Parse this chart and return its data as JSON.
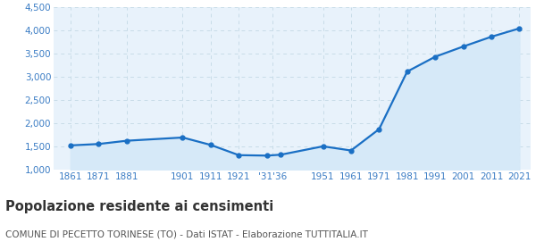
{
  "years": [
    1861,
    1871,
    1881,
    1901,
    1911,
    1921,
    1931,
    1936,
    1951,
    1961,
    1971,
    1981,
    1991,
    2001,
    2011,
    2021
  ],
  "population": [
    1530,
    1560,
    1630,
    1700,
    1540,
    1320,
    1310,
    1330,
    1510,
    1420,
    1880,
    3120,
    3440,
    3660,
    3870,
    4050
  ],
  "x_tick_positions": [
    1861,
    1871,
    1881,
    1901,
    1911,
    1921,
    1933,
    1951,
    1961,
    1971,
    1981,
    1991,
    2001,
    2011,
    2021
  ],
  "x_tick_labels": [
    "1861",
    "1871",
    "1881",
    "1901",
    "1911",
    "1921",
    "'31'36",
    "1951",
    "1961",
    "1971",
    "1981",
    "1991",
    "2001",
    "2011",
    "2021"
  ],
  "line_color": "#1a6fc4",
  "fill_color": "#d6e9f8",
  "marker_color": "#1a6fc4",
  "background_color": "#e8f2fb",
  "grid_color": "#c8dce8",
  "title": "Popolazione residente ai censimenti",
  "subtitle": "COMUNE DI PECETTO TORINESE (TO) - Dati ISTAT - Elaborazione TUTTITALIA.IT",
  "ylim": [
    1000,
    4500
  ],
  "yticks": [
    1000,
    1500,
    2000,
    2500,
    3000,
    3500,
    4000,
    4500
  ],
  "title_fontsize": 10.5,
  "subtitle_fontsize": 7.5,
  "title_color": "#333333",
  "subtitle_color": "#555555",
  "tick_label_color": "#3a7cc4",
  "tick_label_fontsize": 7.5,
  "xlim_left": 1855,
  "xlim_right": 2025
}
